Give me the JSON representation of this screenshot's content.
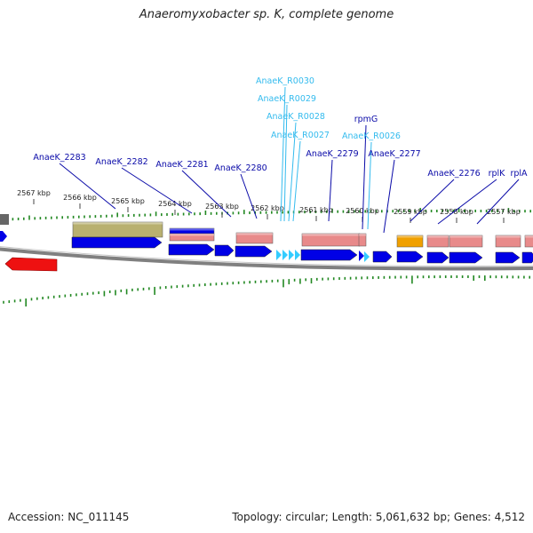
{
  "title": "Anaeromyxobacter sp. K, complete genome",
  "footer": {
    "accession": "Accession: NC_011145",
    "stats": "Topology: circular; Length: 5,061,632 bp; Genes: 4,512"
  },
  "colors": {
    "cds": "#0000e6",
    "rna": "#33ccff",
    "gene_pink": "#e88a8a",
    "gene_olive": "#b8b070",
    "gene_orange": "#f0a000",
    "gene_red": "#ee1111",
    "backbone": "#808080",
    "gc_ticks": "#228822",
    "label_blue": "#0a0aa8",
    "label_cyan": "#33bbee"
  },
  "scale_ticks": [
    "2567 kbp",
    "2566 kbp",
    "2565 kbp",
    "2564 kbp",
    "2563 kbp",
    "2562 kbp",
    "2561 kbp",
    "2560 kbp",
    "2559 kbp",
    "2558 kbp",
    "2557 kbp"
  ],
  "gene_labels": [
    {
      "name": "AnaeK_2283",
      "color": "blue"
    },
    {
      "name": "AnaeK_2282",
      "color": "blue"
    },
    {
      "name": "AnaeK_2281",
      "color": "blue"
    },
    {
      "name": "AnaeK_2280",
      "color": "blue"
    },
    {
      "name": "AnaeK_R0030",
      "color": "cyan"
    },
    {
      "name": "AnaeK_R0029",
      "color": "cyan"
    },
    {
      "name": "AnaeK_R0028",
      "color": "cyan"
    },
    {
      "name": "AnaeK_R0027",
      "color": "cyan"
    },
    {
      "name": "AnaeK_2279",
      "color": "blue"
    },
    {
      "name": "rpmG",
      "color": "blue"
    },
    {
      "name": "AnaeK_R0026",
      "color": "cyan"
    },
    {
      "name": "AnaeK_2277",
      "color": "blue"
    },
    {
      "name": "AnaeK_2276",
      "color": "blue"
    },
    {
      "name": "rplK",
      "color": "blue"
    },
    {
      "name": "rplA",
      "color": "blue"
    }
  ]
}
